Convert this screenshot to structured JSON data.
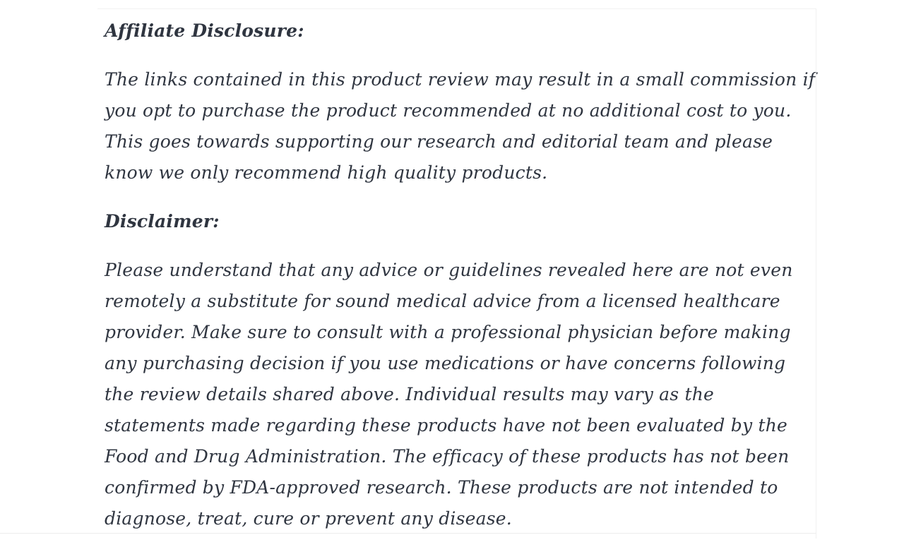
{
  "page": {
    "background_color": "#ffffff",
    "text_color": "#2f3540",
    "divider_color": "#f0f0f0"
  },
  "article": {
    "sections": [
      {
        "heading": "Affiliate Disclosure:",
        "body": "The links contained in this product review may result in a small commission if you opt to purchase the product recommended at no additional cost to you. This goes towards supporting our research and editorial team and please know we only recommend high quality products."
      },
      {
        "heading": "Disclaimer:",
        "body": "Please understand that any advice or guidelines revealed here are not even remotely a substitute for sound medical advice from a licensed healthcare provider. Make sure to consult with a professional physician before making any purchasing decision if you use medications or have concerns following the review details shared above. Individual results may vary as the statements made regarding these products have not been evaluated by the Food and Drug Administration. The efficacy of these products has not been confirmed by FDA-approved research. These products are not intended to diagnose, treat, cure or prevent any disease."
      }
    ]
  }
}
